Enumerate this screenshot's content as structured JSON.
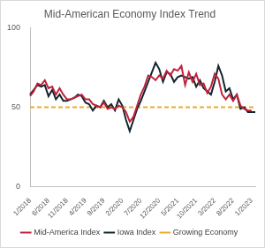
{
  "chart_data": {
    "type": "line",
    "title": "Mid-American Economy Index Trend",
    "categories": [
      "1/2018",
      null,
      null,
      null,
      null,
      "6/2018",
      null,
      null,
      null,
      null,
      "11/2018",
      null,
      null,
      null,
      null,
      "4/2019",
      null,
      null,
      null,
      null,
      "9/2019",
      null,
      null,
      null,
      null,
      "2/2020",
      null,
      null,
      null,
      null,
      "7/2020",
      null,
      null,
      null,
      null,
      "12/2020",
      null,
      null,
      null,
      null,
      "5/2021",
      null,
      null,
      null,
      null,
      "10/2021",
      null,
      null,
      null,
      null,
      "3/2022",
      null,
      null,
      null,
      null,
      "8/2022",
      null,
      null,
      null,
      null,
      "1/2023",
      null
    ],
    "series": [
      {
        "name": "Mid-America Index",
        "color": "#c0223b",
        "marker": "none",
        "line_style": "solid",
        "values": [
          57,
          60,
          65,
          64,
          67,
          62,
          63,
          58,
          62,
          58,
          55,
          55,
          56,
          57,
          58,
          55,
          55,
          52,
          51,
          50,
          53,
          49,
          50,
          49,
          51,
          50,
          47,
          41,
          44,
          51,
          58,
          63,
          70,
          69,
          67,
          70,
          68,
          73,
          70,
          74,
          73,
          76,
          64,
          72,
          66,
          71,
          64,
          65,
          59,
          63,
          71,
          68,
          58,
          55,
          58,
          54,
          58,
          51,
          49,
          48,
          48,
          null
        ]
      },
      {
        "name": "Iowa Index",
        "color": "#14242e",
        "marker": "none",
        "line_style": "solid",
        "values": [
          58,
          61,
          64,
          63,
          64,
          57,
          61,
          55,
          58,
          54,
          54,
          55,
          56,
          58,
          57,
          53,
          52,
          48,
          51,
          50,
          54,
          50,
          52,
          48,
          55,
          51,
          42,
          35,
          42,
          49,
          54,
          60,
          66,
          72,
          78,
          74,
          66,
          72,
          71,
          66,
          69,
          70,
          69,
          68,
          69,
          63,
          67,
          62,
          60,
          58,
          66,
          76,
          70,
          60,
          62,
          55,
          58,
          49,
          50,
          47,
          47,
          47
        ]
      },
      {
        "name": "Growing Economy",
        "color": "#e6ae2a",
        "marker": "none",
        "line_style": "dashed",
        "values": [
          50,
          50,
          50,
          50,
          50,
          50,
          50,
          50,
          50,
          50,
          50,
          50,
          50,
          50,
          50,
          50,
          50,
          50,
          50,
          50,
          50,
          50,
          50,
          50,
          50,
          50,
          50,
          50,
          50,
          50,
          50,
          50,
          50,
          50,
          50,
          50,
          50,
          50,
          50,
          50,
          50,
          50,
          50,
          50,
          50,
          50,
          50,
          50,
          50,
          50,
          50,
          50,
          50,
          50,
          50,
          50,
          50,
          50,
          50,
          50,
          50,
          50
        ]
      }
    ],
    "ylim": [
      0,
      100
    ],
    "yticks": [
      0,
      50,
      100
    ],
    "grid": false,
    "legend": "bottom"
  }
}
